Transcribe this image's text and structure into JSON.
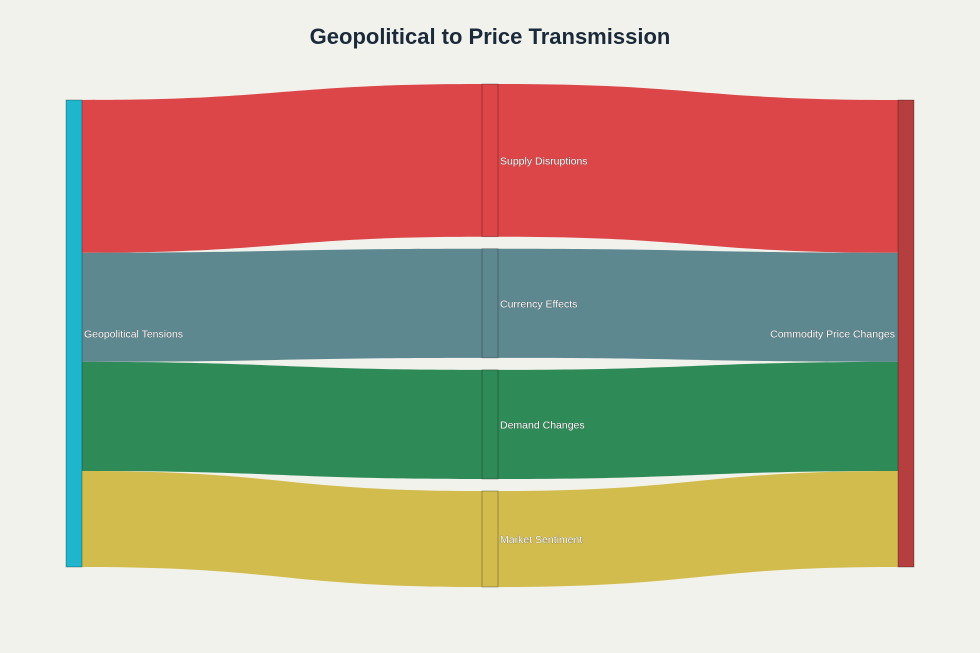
{
  "chart_data": {
    "type": "sankey",
    "title": "Geopolitical to Price Transmission",
    "nodes": [
      {
        "id": "geo",
        "label": "Geopolitical Tensions",
        "color": "#1fb5cc"
      },
      {
        "id": "supply",
        "label": "Supply Disruptions",
        "color": "#dc4648"
      },
      {
        "id": "currency",
        "label": "Currency Effects",
        "color": "#5e8890"
      },
      {
        "id": "demand",
        "label": "Demand Changes",
        "color": "#2e8b57"
      },
      {
        "id": "sentiment",
        "label": "Market Sentiment",
        "color": "#d2bc4e"
      },
      {
        "id": "commodity",
        "label": "Commodity Price Changes",
        "color": "#b53e3e"
      }
    ],
    "links": [
      {
        "source": "geo",
        "target": "supply",
        "value": 35,
        "color": "#dc4648"
      },
      {
        "source": "geo",
        "target": "currency",
        "value": 25,
        "color": "#5e8890"
      },
      {
        "source": "geo",
        "target": "demand",
        "value": 25,
        "color": "#2e8b57"
      },
      {
        "source": "geo",
        "target": "sentiment",
        "value": 22,
        "color": "#d2bc4e"
      },
      {
        "source": "supply",
        "target": "commodity",
        "value": 35,
        "color": "#dc4648"
      },
      {
        "source": "currency",
        "target": "commodity",
        "value": 25,
        "color": "#5e8890"
      },
      {
        "source": "demand",
        "target": "commodity",
        "value": 25,
        "color": "#2e8b57"
      },
      {
        "source": "sentiment",
        "target": "commodity",
        "value": 22,
        "color": "#d2bc4e"
      }
    ]
  }
}
